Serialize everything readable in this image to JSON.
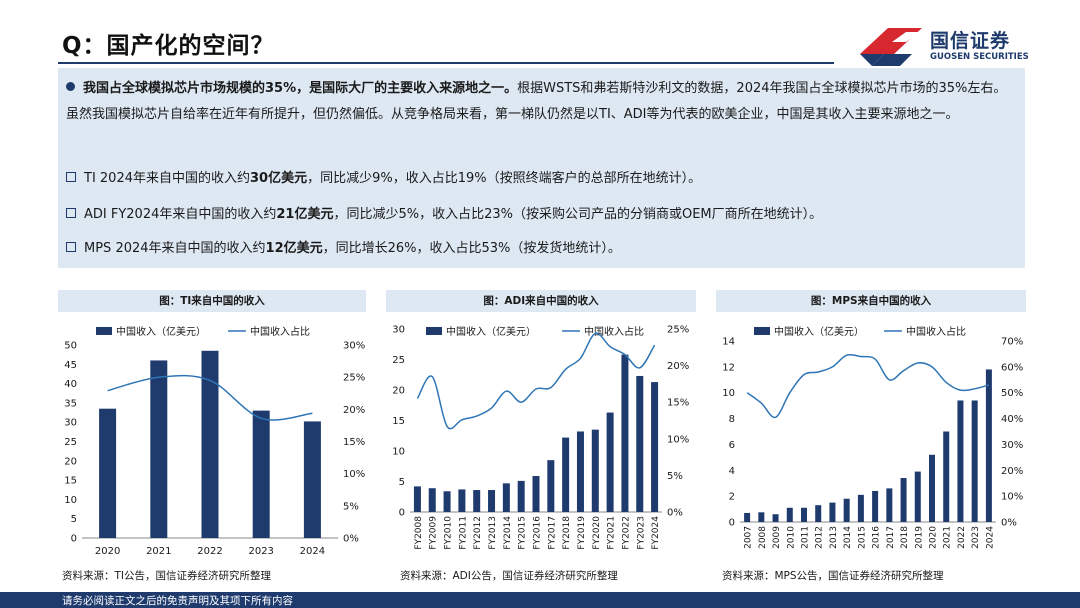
{
  "page": {
    "title": "Q：国产化的空间？"
  },
  "logo": {
    "name_cn": "国信证券",
    "name_en": "GUOSEN SECURITIES"
  },
  "summary": {
    "lead_bold": "我国占全球模拟芯片市场规模的35%，是国际大厂的主要收入来源地之一。",
    "lead_text": "根据WSTS和弗若斯特沙利文的数据，2024年我国占全球模拟芯片市场的35%左右。虽然我国模拟芯片自给率在近年有所提升，但仍然偏低。从竞争格局来看，第一梯队仍然是以TI、ADI等为代表的欧美企业，中国是其收入主要来源地之一。",
    "items": [
      {
        "pre": "TI 2024年来自中国的收入约",
        "bold": "30亿美元",
        "post": "，同比减少9%，收入占比19%（按照终端客户的总部所在地统计）。"
      },
      {
        "pre": "ADI FY2024年来自中国的收入约",
        "bold": "21亿美元",
        "post": "，同比减少5%，收入占比23%（按采购公司产品的分销商或OEM厂商所在地统计）。"
      },
      {
        "pre": "MPS 2024年来自中国的收入约",
        "bold": "12亿美元",
        "post": "，同比增长26%，收入占比53%（按发货地统计）。"
      }
    ]
  },
  "colors": {
    "bar": "#1f3b6e",
    "line": "#2e75b6",
    "accent_red": "#d7282f"
  },
  "footer": {
    "disclaimer": "请务必阅读正文之后的免责声明及其项下所有内容"
  },
  "chart_data": [
    {
      "type": "bar",
      "title": "图：TI来自中国的收入",
      "source": "资料来源：TI公告，国信证券经济研究所整理",
      "categories": [
        "2020",
        "2021",
        "2022",
        "2023",
        "2024"
      ],
      "series": [
        {
          "name": "中国收入（亿美元）",
          "type": "bar",
          "axis": "left",
          "values": [
            33.5,
            46,
            48.5,
            33,
            30.2
          ]
        },
        {
          "name": "中国收入占比",
          "type": "line",
          "axis": "right",
          "values": [
            22.9,
            25,
            24.5,
            18.6,
            19.4
          ]
        }
      ],
      "ylim_left": [
        0,
        50
      ],
      "yticks_left": [
        0,
        5,
        10,
        15,
        20,
        25,
        30,
        35,
        40,
        45,
        50
      ],
      "ylim_right": [
        0,
        30
      ],
      "yticks_right": [
        0,
        5,
        10,
        15,
        20,
        25,
        30
      ],
      "right_unit": "%",
      "legend": "top",
      "xlabel": "",
      "ylabel": ""
    },
    {
      "type": "bar",
      "title": "图：ADI来自中国的收入",
      "source": "资料来源：ADI公告，国信证券经济研究所整理",
      "categories": [
        "FY2008",
        "FY2009",
        "FY2010",
        "FY2011",
        "FY2012",
        "FY2013",
        "FY2014",
        "FY2015",
        "FY2016",
        "FY2017",
        "FY2018",
        "FY2019",
        "FY2020",
        "FY2021",
        "FY2022",
        "FY2023",
        "FY2024"
      ],
      "series": [
        {
          "name": "中国收入（亿美元）",
          "type": "bar",
          "axis": "left",
          "values": [
            4.2,
            3.9,
            3.4,
            3.7,
            3.6,
            3.6,
            4.7,
            5.1,
            5.9,
            8.5,
            12.2,
            13.2,
            13.5,
            16.3,
            25.8,
            22.3,
            21.3
          ]
        },
        {
          "name": "中国收入占比",
          "type": "line",
          "axis": "right",
          "values": [
            15.5,
            18.5,
            11.7,
            12.6,
            13.1,
            14.2,
            16.5,
            15,
            16.8,
            17,
            19.5,
            21,
            24.4,
            22.6,
            21.5,
            19.7,
            22.8
          ]
        }
      ],
      "ylim_left": [
        0,
        30
      ],
      "yticks_left": [
        0,
        5,
        10,
        15,
        20,
        25,
        30
      ],
      "ylim_right": [
        0,
        25
      ],
      "yticks_right": [
        0,
        5,
        10,
        15,
        20,
        25
      ],
      "right_unit": "%",
      "legend": "top",
      "xlabel": "",
      "ylabel": ""
    },
    {
      "type": "bar",
      "title": "图：MPS来自中国的收入",
      "source": "资料来源：MPS公告，国信证券经济研究所整理",
      "categories": [
        "2007",
        "2008",
        "2009",
        "2010",
        "2011",
        "2012",
        "2013",
        "2014",
        "2015",
        "2016",
        "2017",
        "2018",
        "2019",
        "2020",
        "2021",
        "2022",
        "2023",
        "2024"
      ],
      "series": [
        {
          "name": "中国收入（亿美元）",
          "type": "bar",
          "axis": "left",
          "values": [
            0.7,
            0.75,
            0.6,
            1.1,
            1.1,
            1.3,
            1.5,
            1.8,
            2.1,
            2.4,
            2.6,
            3.4,
            3.9,
            5.2,
            7.0,
            9.4,
            9.4,
            11.8
          ]
        },
        {
          "name": "中国收入占比",
          "type": "line",
          "axis": "right",
          "values": [
            50,
            46,
            40.5,
            50,
            57,
            58,
            60,
            64.5,
            64,
            63,
            55,
            58.5,
            61.5,
            60,
            54,
            51,
            51.5,
            53
          ]
        }
      ],
      "ylim_left": [
        0,
        14
      ],
      "yticks_left": [
        0,
        2,
        4,
        6,
        8,
        10,
        12,
        14
      ],
      "ylim_right": [
        0,
        70
      ],
      "yticks_right": [
        0,
        10,
        20,
        30,
        40,
        50,
        60,
        70
      ],
      "right_unit": "%",
      "legend": "top",
      "xlabel": "",
      "ylabel": ""
    }
  ]
}
